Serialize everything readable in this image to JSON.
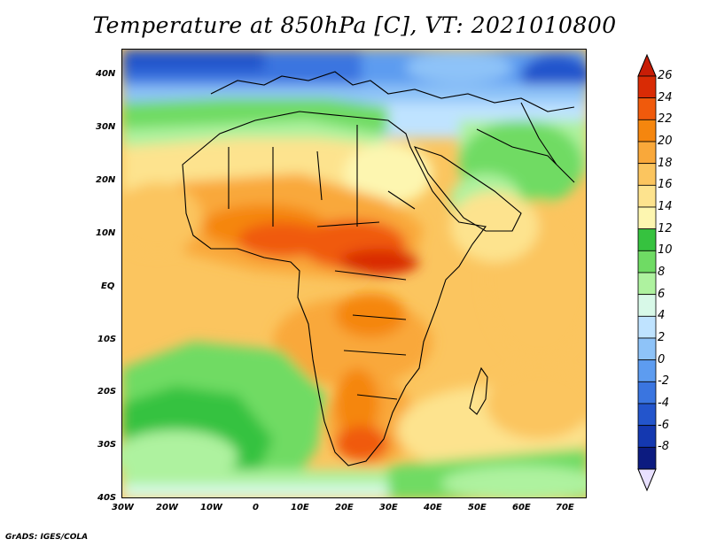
{
  "title": "Temperature at 850hPa [C], VT: 2021010800",
  "credit": "GrADS: IGES/COLA",
  "lat_labels": [
    "40N",
    "30N",
    "20N",
    "10N",
    "EQ",
    "10S",
    "20S",
    "30S",
    "40S"
  ],
  "lon_labels": [
    "30W",
    "20W",
    "10W",
    "0",
    "10E",
    "20E",
    "30E",
    "40E",
    "50E",
    "60E",
    "70E"
  ],
  "colorbar": {
    "labels": [
      "26",
      "24",
      "22",
      "20",
      "18",
      "16",
      "14",
      "12",
      "10",
      "8",
      "6",
      "4",
      "2",
      "0",
      "-2",
      "-4",
      "-6",
      "-8"
    ],
    "colors": [
      "#d92b05",
      "#f05a0c",
      "#f5860e",
      "#f9a83a",
      "#fbc55f",
      "#fde38e",
      "#fdf6b0",
      "#36c23f",
      "#6fdb64",
      "#aef29f",
      "#d8f9e8",
      "#bfe3ff",
      "#8ec3f8",
      "#5d9cf0",
      "#3a75e0",
      "#2355cc",
      "#1438b0",
      "#0c1b80"
    ],
    "top_arrow_color": "#c81d06",
    "bottom_arrow_color": "#e8e0ff"
  }
}
